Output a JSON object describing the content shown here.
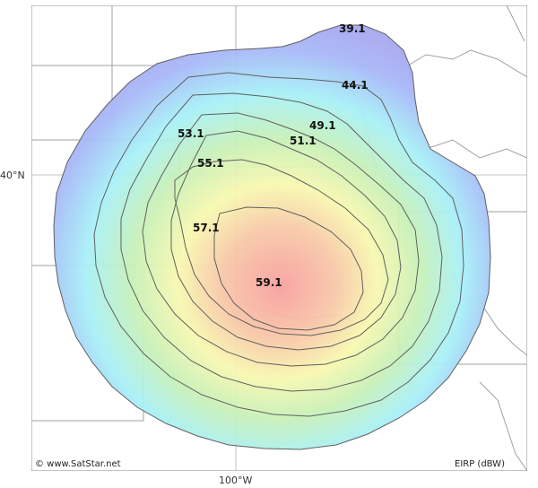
{
  "map": {
    "latitude_label": "40°N",
    "longitude_label": "100°W",
    "copyright": "© www.SatStar.net",
    "legend_unit": "EIRP (dBW)",
    "contour_labels": [
      "39.1",
      "44.1",
      "49.1",
      "51.1",
      "53.1",
      "55.1",
      "57.1",
      "59.1"
    ],
    "colors": {
      "outer": "#a8a8f0",
      "mid_cyan": "#a8f0f8",
      "mid_green": "#c8f0b8",
      "yellow": "#f8f8b0",
      "peak": "#f8a8a8",
      "contour_line": "#555555",
      "border_line": "#999999",
      "grid_line": "#aaaaaa"
    }
  }
}
